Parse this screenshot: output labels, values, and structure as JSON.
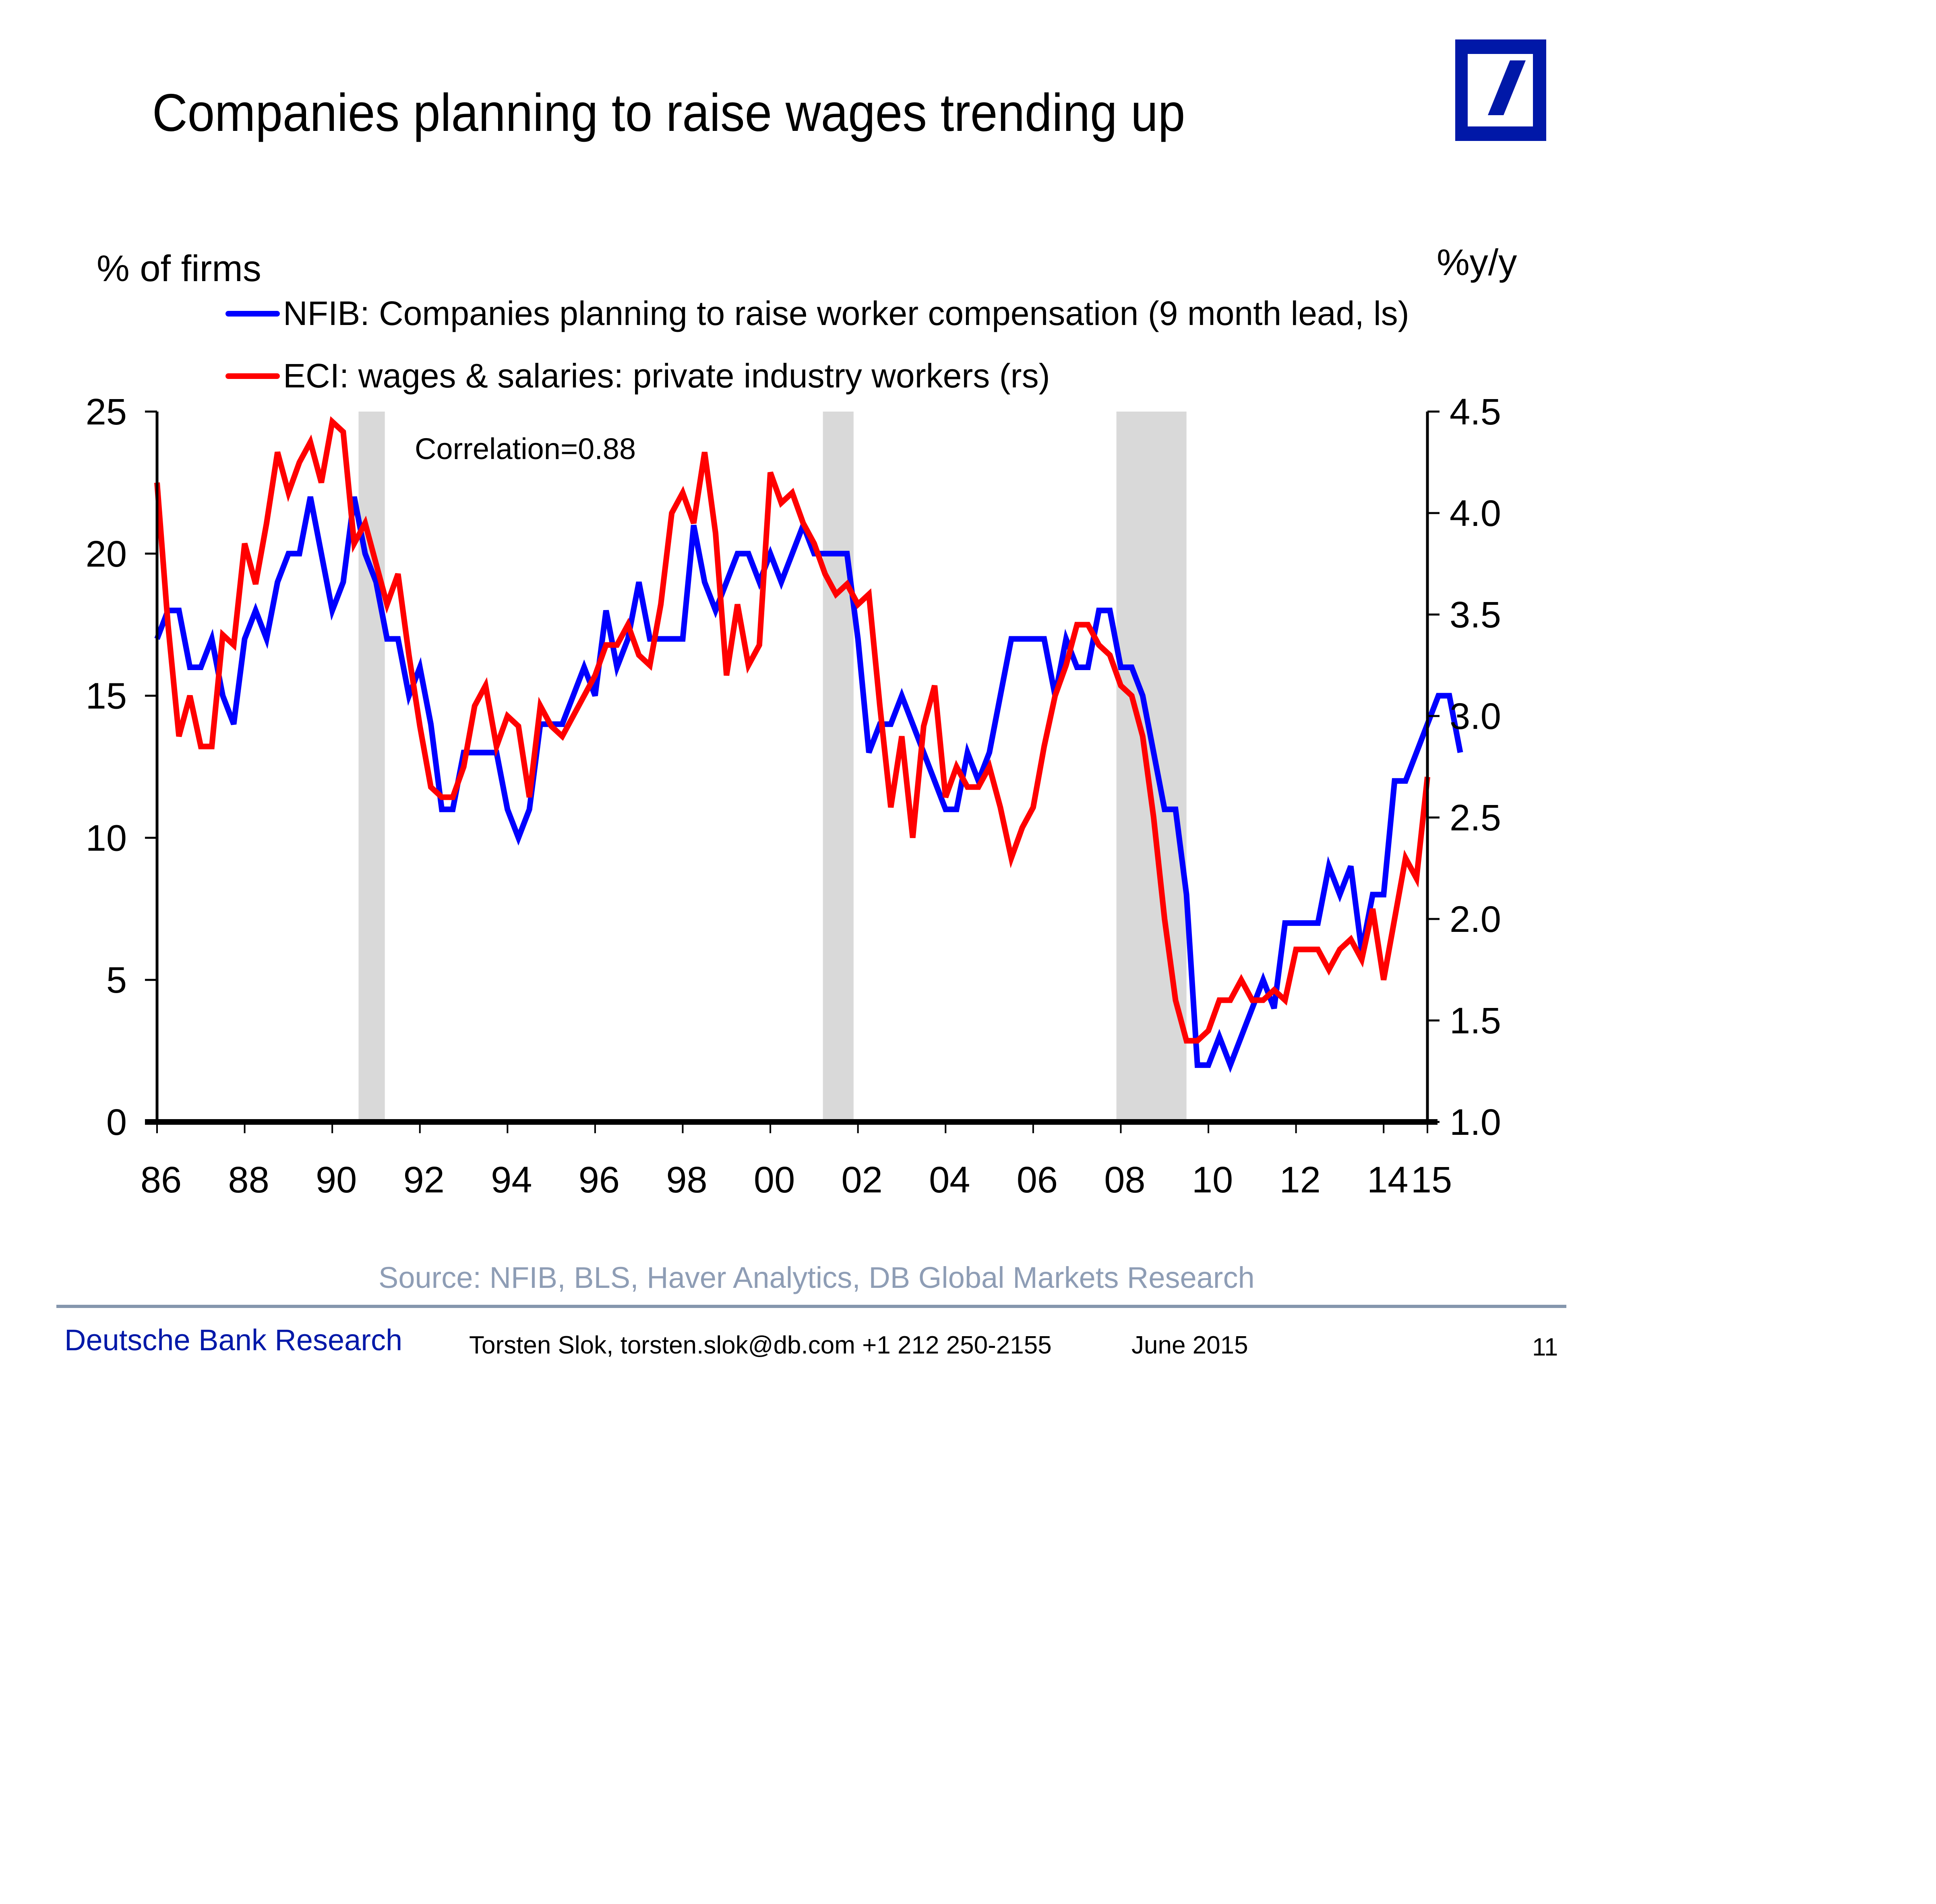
{
  "slide": {
    "title": "Companies planning to raise wages trending up",
    "logo": "deutsche-bank-logo",
    "source": "Source:  NFIB, BLS, Haver Analytics, DB Global Markets Research",
    "footer": {
      "brand": "Deutsche Bank Research",
      "author": "Torsten Slok, torsten.slok@db.com  +1 212 250-2155",
      "date": "June 2015",
      "page": "11"
    },
    "colors": {
      "brand": "#0018A8",
      "nfib": "#0000FF",
      "eci": "#FF0000",
      "recession": "#D9D9D9",
      "source_text": "#8E9DB5"
    }
  },
  "chart_data": {
    "type": "line",
    "title": "Companies planning to raise wages trending up",
    "ylabel_left": "% of firms",
    "ylabel_right": "%y/y",
    "annotation": "Correlation=0.88",
    "x_range": [
      1986,
      2015
    ],
    "x_ticks": [
      1986,
      1988,
      1990,
      1992,
      1994,
      1996,
      1998,
      2000,
      2002,
      2004,
      2006,
      2008,
      2010,
      2012,
      2014,
      2015
    ],
    "x_tick_labels": [
      "86",
      "88",
      "90",
      "92",
      "94",
      "96",
      "98",
      "00",
      "02",
      "04",
      "06",
      "08",
      "10",
      "12",
      "14",
      "15"
    ],
    "ylim_left": [
      0,
      25
    ],
    "y_ticks_left": [
      0,
      5,
      10,
      15,
      20,
      25
    ],
    "y_tick_labels_left": [
      "0",
      "5",
      "10",
      "15",
      "20",
      "25"
    ],
    "ylim_right": [
      1.0,
      4.5
    ],
    "y_ticks_right": [
      1.0,
      1.5,
      2.0,
      2.5,
      3.0,
      3.5,
      4.0,
      4.5
    ],
    "y_tick_labels_right": [
      "1.0",
      "1.5",
      "2.0",
      "2.5",
      "3.0",
      "3.5",
      "4.0",
      "4.5"
    ],
    "grid": false,
    "legend_position": "top-left",
    "recessions": [
      [
        1990.6,
        1991.2
      ],
      [
        2001.2,
        2001.9
      ],
      [
        2007.9,
        2009.5
      ]
    ],
    "series": [
      {
        "name": "NFIB: Companies planning to raise worker compensation (9 month lead, ls)",
        "axis": "left",
        "color": "#0000FF",
        "x": [
          1986.0,
          1986.25,
          1986.5,
          1986.75,
          1987.0,
          1987.25,
          1987.5,
          1987.75,
          1988.0,
          1988.25,
          1988.5,
          1988.75,
          1989.0,
          1989.25,
          1989.5,
          1989.75,
          1990.0,
          1990.25,
          1990.5,
          1990.75,
          1991.0,
          1991.25,
          1991.5,
          1991.75,
          1992.0,
          1992.25,
          1992.5,
          1992.75,
          1993.0,
          1993.25,
          1993.5,
          1993.75,
          1994.0,
          1994.25,
          1994.5,
          1994.75,
          1995.0,
          1995.25,
          1995.5,
          1995.75,
          1996.0,
          1996.25,
          1996.5,
          1996.75,
          1997.0,
          1997.25,
          1997.5,
          1997.75,
          1998.0,
          1998.25,
          1998.5,
          1998.75,
          1999.0,
          1999.25,
          1999.5,
          1999.75,
          2000.0,
          2000.25,
          2000.5,
          2000.75,
          2001.0,
          2001.25,
          2001.5,
          2001.75,
          2002.0,
          2002.25,
          2002.5,
          2002.75,
          2003.0,
          2003.25,
          2003.5,
          2003.75,
          2004.0,
          2004.25,
          2004.5,
          2004.75,
          2005.0,
          2005.25,
          2005.5,
          2005.75,
          2006.0,
          2006.25,
          2006.5,
          2006.75,
          2007.0,
          2007.25,
          2007.5,
          2007.75,
          2008.0,
          2008.25,
          2008.5,
          2008.75,
          2009.0,
          2009.25,
          2009.5,
          2009.75,
          2010.0,
          2010.25,
          2010.5,
          2010.75,
          2011.0,
          2011.25,
          2011.5,
          2011.75,
          2012.0,
          2012.25,
          2012.5,
          2012.75,
          2013.0,
          2013.25,
          2013.5,
          2013.75,
          2014.0,
          2014.25,
          2014.5,
          2014.75,
          2015.0,
          2015.25,
          2015.5,
          2015.75
        ],
        "values": [
          17,
          18,
          18,
          16,
          16,
          17,
          15,
          14,
          17,
          18,
          17,
          19,
          20,
          20,
          22,
          20,
          18,
          19,
          22,
          20,
          19,
          17,
          17,
          15,
          16,
          14,
          11,
          11,
          13,
          13,
          13,
          13,
          11,
          10,
          11,
          14,
          14,
          14,
          15,
          16,
          15,
          18,
          16,
          17,
          19,
          17,
          17,
          17,
          17,
          21,
          19,
          18,
          19,
          20,
          20,
          19,
          20,
          19,
          20,
          21,
          20,
          20,
          20,
          20,
          17,
          13,
          14,
          14,
          15,
          14,
          13,
          12,
          11,
          11,
          13,
          12,
          13,
          15,
          17,
          17,
          17,
          17,
          15,
          17,
          16,
          16,
          18,
          18,
          16,
          16,
          15,
          13,
          11,
          11,
          8,
          2,
          2,
          3,
          2,
          3,
          4,
          5,
          4,
          7,
          7,
          7,
          7,
          9,
          8,
          9,
          6,
          8,
          8,
          12,
          12,
          13,
          14,
          15,
          15,
          13
        ]
      },
      {
        "name": "ECI: wages & salaries: private industry workers (rs)",
        "axis": "right",
        "color": "#FF0000",
        "x": [
          1986.0,
          1986.25,
          1986.5,
          1986.75,
          1987.0,
          1987.25,
          1987.5,
          1987.75,
          1988.0,
          1988.25,
          1988.5,
          1988.75,
          1989.0,
          1989.25,
          1989.5,
          1989.75,
          1990.0,
          1990.25,
          1990.5,
          1990.75,
          1991.0,
          1991.25,
          1991.5,
          1991.75,
          1992.0,
          1992.25,
          1992.5,
          1992.75,
          1993.0,
          1993.25,
          1993.5,
          1993.75,
          1994.0,
          1994.25,
          1994.5,
          1994.75,
          1995.0,
          1995.25,
          1995.5,
          1995.75,
          1996.0,
          1996.25,
          1996.5,
          1996.75,
          1997.0,
          1997.25,
          1997.5,
          1997.75,
          1998.0,
          1998.25,
          1998.5,
          1998.75,
          1999.0,
          1999.25,
          1999.5,
          1999.75,
          2000.0,
          2000.25,
          2000.5,
          2000.75,
          2001.0,
          2001.25,
          2001.5,
          2001.75,
          2002.0,
          2002.25,
          2002.5,
          2002.75,
          2003.0,
          2003.25,
          2003.5,
          2003.75,
          2004.0,
          2004.25,
          2004.5,
          2004.75,
          2005.0,
          2005.25,
          2005.5,
          2005.75,
          2006.0,
          2006.25,
          2006.5,
          2006.75,
          2007.0,
          2007.25,
          2007.5,
          2007.75,
          2008.0,
          2008.25,
          2008.5,
          2008.75,
          2009.0,
          2009.25,
          2009.5,
          2009.75,
          2010.0,
          2010.25,
          2010.5,
          2010.75,
          2011.0,
          2011.25,
          2011.5,
          2011.75,
          2012.0,
          2012.25,
          2012.5,
          2012.75,
          2013.0,
          2013.25,
          2013.5,
          2013.75,
          2014.0,
          2014.25,
          2014.5,
          2014.75,
          2015.0
        ],
        "values": [
          4.15,
          3.45,
          2.9,
          3.1,
          2.85,
          2.85,
          3.4,
          3.35,
          3.85,
          3.65,
          3.95,
          4.3,
          4.1,
          4.25,
          4.35,
          4.15,
          4.45,
          4.4,
          3.85,
          3.95,
          3.75,
          3.55,
          3.7,
          3.3,
          2.95,
          2.65,
          2.6,
          2.6,
          2.75,
          3.05,
          3.15,
          2.85,
          3.0,
          2.95,
          2.6,
          3.05,
          2.95,
          2.9,
          3.0,
          3.1,
          3.2,
          3.35,
          3.35,
          3.45,
          3.3,
          3.25,
          3.55,
          4.0,
          4.1,
          3.95,
          4.3,
          3.9,
          3.2,
          3.55,
          3.25,
          3.35,
          4.2,
          4.05,
          4.1,
          3.95,
          3.85,
          3.7,
          3.6,
          3.65,
          3.55,
          3.6,
          3.05,
          2.55,
          2.9,
          2.4,
          2.95,
          3.15,
          2.6,
          2.75,
          2.65,
          2.65,
          2.75,
          2.55,
          2.3,
          2.45,
          2.55,
          2.85,
          3.1,
          3.25,
          3.45,
          3.45,
          3.35,
          3.3,
          3.15,
          3.1,
          2.9,
          2.5,
          2.0,
          1.6,
          1.4,
          1.4,
          1.45,
          1.6,
          1.6,
          1.7,
          1.6,
          1.6,
          1.65,
          1.6,
          1.85,
          1.85,
          1.85,
          1.75,
          1.85,
          1.9,
          1.8,
          2.05,
          1.7,
          2.0,
          2.3,
          2.2,
          2.7
        ]
      }
    ]
  }
}
